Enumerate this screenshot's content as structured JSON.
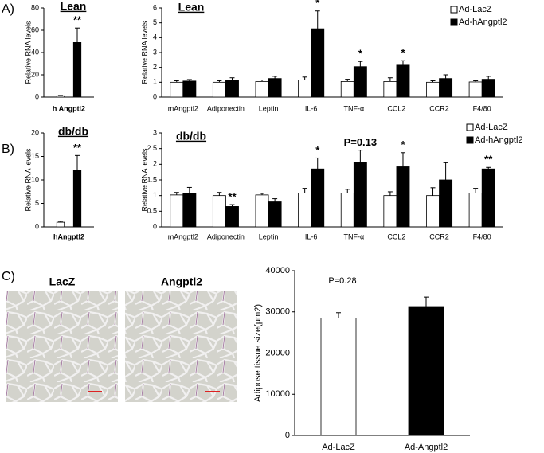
{
  "panel_labels": [
    "A)",
    "B)",
    "C)"
  ],
  "image_labels": [
    "LacZ",
    "Angptl2"
  ],
  "chart_data": [
    {
      "type": "bar",
      "title": "Lean",
      "ylabel": "Relative RNA levels",
      "xlabel": "h Angptl2",
      "values": [
        1.2,
        49
      ],
      "errors": [
        0.3,
        13
      ],
      "colors": [
        "#ffffff",
        "#000000"
      ],
      "value_annotations": [
        null,
        "**"
      ],
      "ylim": [
        0,
        80
      ],
      "yticks": [
        0,
        20,
        40,
        60,
        80
      ]
    },
    {
      "type": "bar",
      "title": "Lean",
      "ylabel": "Relative RNA levels",
      "categories": [
        "mAngptl2",
        "Adiponectin",
        "Leptin",
        "IL-6",
        "TNF-α",
        "CCL2",
        "CCR2",
        "F4/80"
      ],
      "series": [
        {
          "name": "Ad-LacZ",
          "color": "#ffffff",
          "values": [
            1,
            1,
            1.05,
            1.15,
            1.05,
            1.05,
            1,
            1.02
          ],
          "errors": [
            0.1,
            0.1,
            0.1,
            0.2,
            0.15,
            0.25,
            0.1,
            0.08
          ]
        },
        {
          "name": "Ad-hAngptl2",
          "color": "#000000",
          "values": [
            1.08,
            1.15,
            1.25,
            4.6,
            2.05,
            2.15,
            1.25,
            1.2
          ],
          "errors": [
            0.1,
            0.15,
            0.15,
            1.2,
            0.35,
            0.3,
            0.25,
            0.2
          ],
          "value_annotations": [
            null,
            null,
            null,
            "*",
            "*",
            "*",
            null,
            null
          ]
        }
      ],
      "ylim": [
        0,
        6
      ],
      "yticks": [
        0,
        1,
        2,
        3,
        4,
        5,
        6
      ],
      "legend": "upper right"
    },
    {
      "type": "bar",
      "title": "db/db",
      "ylabel": "Relative RNA levels",
      "xlabel": "hAngptl2",
      "values": [
        1,
        12
      ],
      "errors": [
        0.2,
        3.2
      ],
      "colors": [
        "#ffffff",
        "#000000"
      ],
      "value_annotations": [
        null,
        "**"
      ],
      "ylim": [
        0,
        20
      ],
      "yticks": [
        0,
        5,
        10,
        15,
        20
      ]
    },
    {
      "type": "bar",
      "title": "db/db",
      "ylabel": "Relative RNA levels",
      "categories": [
        "mAngptl2",
        "Adiponectin",
        "Leptin",
        "IL-6",
        "TNF-α",
        "CCL2",
        "CCR2",
        "F4/80"
      ],
      "series": [
        {
          "name": "Ad-LacZ",
          "color": "#ffffff",
          "values": [
            1.02,
            1,
            1.02,
            1.08,
            1.08,
            1,
            1,
            1.08
          ],
          "errors": [
            0.08,
            0.1,
            0.05,
            0.15,
            0.12,
            0.12,
            0.25,
            0.15
          ]
        },
        {
          "name": "Ad-hAngptl2",
          "color": "#000000",
          "values": [
            1.08,
            0.65,
            0.8,
            1.85,
            2.05,
            1.92,
            1.5,
            1.85
          ],
          "errors": [
            0.18,
            0.06,
            0.1,
            0.35,
            0.4,
            0.45,
            0.55,
            0.05
          ],
          "value_annotations": [
            null,
            "**",
            null,
            "*",
            "P=0.13",
            "*",
            null,
            "**"
          ]
        }
      ],
      "ylim": [
        0,
        3
      ],
      "yticks": [
        0,
        0.5,
        1,
        1.5,
        2,
        2.5,
        3
      ],
      "legend": "upper right"
    },
    {
      "type": "bar",
      "ylabel": "Adipose tissue size(μm2)",
      "annotation": "P=0.28",
      "categories": [
        "Ad-LacZ",
        "Ad-Angptl2"
      ],
      "values": [
        28500,
        31300
      ],
      "errors": [
        1300,
        2300
      ],
      "colors": [
        "#ffffff",
        "#000000"
      ],
      "ylim": [
        0,
        40000
      ],
      "yticks": [
        0,
        10000,
        20000,
        30000,
        40000
      ]
    }
  ]
}
